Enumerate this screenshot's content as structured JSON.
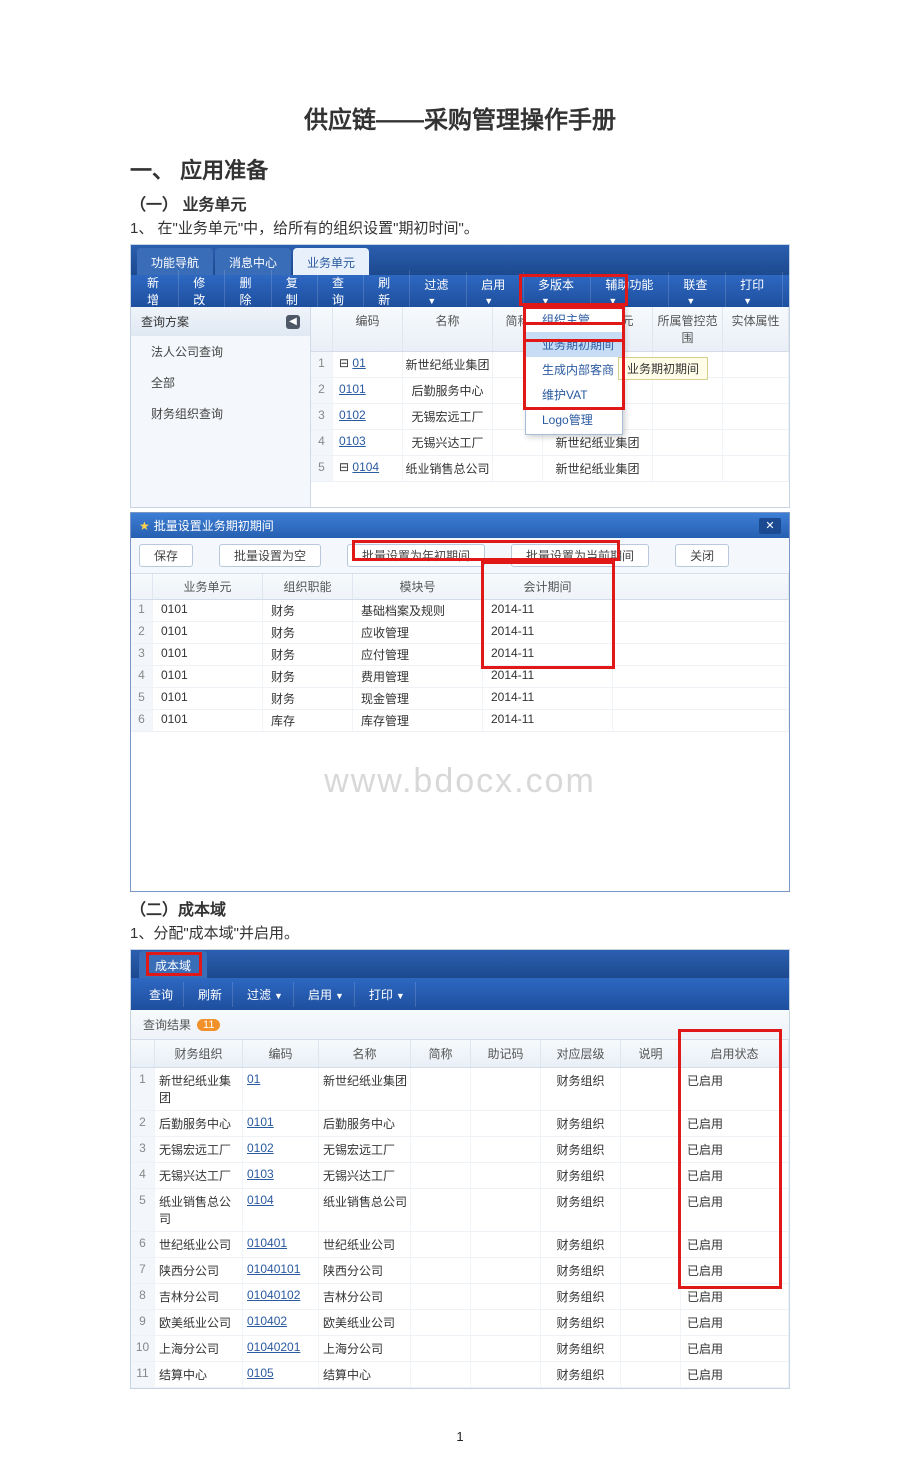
{
  "doc": {
    "title": "供应链——采购管理操作手册",
    "h1": "一、 应用准备",
    "h2a": "（一） 业务单元",
    "p1": "1、 在\"业务单元\"中，给所有的组织设置\"期初时间\"。",
    "h2b": "（二）成本域",
    "p2": "1、分配\"成本域\"并启用。",
    "pagenum": "1"
  },
  "s1": {
    "tabs": [
      "功能导航",
      "消息中心",
      "业务单元"
    ],
    "toolbar": [
      "新增",
      "修改",
      "删除",
      "复制",
      "查询",
      "刷新",
      "过滤",
      "启用",
      "多版本",
      "辅助功能",
      "联查",
      "打印"
    ],
    "left_hdr": "查询方案",
    "left_items": [
      "法人公司查询",
      "全部",
      "财务组织查询"
    ],
    "grid_headers": [
      "编码",
      "名称",
      "简称",
      "上级业务单元",
      "所属管控范围",
      "实体属性"
    ],
    "rows": [
      {
        "n": "1",
        "code": "01",
        "tree": "⊟",
        "name": "新世纪纸业集团",
        "parent": ""
      },
      {
        "n": "2",
        "code": "0101",
        "tree": "",
        "name": "后勤服务中心",
        "parent": "业集团"
      },
      {
        "n": "3",
        "code": "0102",
        "tree": "",
        "name": "无锡宏远工厂",
        "parent": "业集团"
      },
      {
        "n": "4",
        "code": "0103",
        "tree": "",
        "name": "无锡兴达工厂",
        "parent": "新世纪纸业集团"
      },
      {
        "n": "5",
        "code": "0104",
        "tree": "⊟",
        "name": "纸业销售总公司",
        "parent": "新世纪纸业集团"
      }
    ],
    "dd_items": [
      "组织主管",
      "业务期初期间",
      "生成内部客商",
      "维护VAT",
      "Logo管理"
    ],
    "tooltip": "业务期初期间"
  },
  "s2": {
    "title": "批量设置业务期初期间",
    "btns": [
      "保存",
      "批量设置为空",
      "批量设置为年初期间",
      "批量设置为当前期间",
      "关闭"
    ],
    "headers": [
      "业务单元",
      "组织职能",
      "模块号",
      "会计期间"
    ],
    "rows": [
      {
        "n": "1",
        "u": "0101",
        "f": "财务",
        "m": "基础档案及规则",
        "p": "2014-11"
      },
      {
        "n": "2",
        "u": "0101",
        "f": "财务",
        "m": "应收管理",
        "p": "2014-11"
      },
      {
        "n": "3",
        "u": "0101",
        "f": "财务",
        "m": "应付管理",
        "p": "2014-11"
      },
      {
        "n": "4",
        "u": "0101",
        "f": "财务",
        "m": "费用管理",
        "p": "2014-11"
      },
      {
        "n": "5",
        "u": "0101",
        "f": "财务",
        "m": "现金管理",
        "p": "2014-11"
      },
      {
        "n": "6",
        "u": "0101",
        "f": "库存",
        "m": "库存管理",
        "p": "2014-11"
      }
    ],
    "watermark": "www.bdocx.com"
  },
  "s3": {
    "tab": "成本域",
    "toolbar": [
      "查询",
      "刷新",
      "过滤",
      "启用",
      "打印"
    ],
    "sub": "查询结果",
    "count": "11",
    "headers": [
      "财务组织",
      "编码",
      "名称",
      "简称",
      "助记码",
      "对应层级",
      "说明",
      "启用状态"
    ],
    "rows": [
      {
        "n": "1",
        "org": "新世纪纸业集团",
        "code": "01",
        "name": "新世纪纸业集团",
        "lvl": "财务组织",
        "st": "已启用"
      },
      {
        "n": "2",
        "org": "后勤服务中心",
        "code": "0101",
        "name": "后勤服务中心",
        "lvl": "财务组织",
        "st": "已启用"
      },
      {
        "n": "3",
        "org": "无锡宏远工厂",
        "code": "0102",
        "name": "无锡宏远工厂",
        "lvl": "财务组织",
        "st": "已启用"
      },
      {
        "n": "4",
        "org": "无锡兴达工厂",
        "code": "0103",
        "name": "无锡兴达工厂",
        "lvl": "财务组织",
        "st": "已启用"
      },
      {
        "n": "5",
        "org": "纸业销售总公司",
        "code": "0104",
        "name": "纸业销售总公司",
        "lvl": "财务组织",
        "st": "已启用"
      },
      {
        "n": "6",
        "org": "世纪纸业公司",
        "code": "010401",
        "name": "世纪纸业公司",
        "lvl": "财务组织",
        "st": "已启用"
      },
      {
        "n": "7",
        "org": "陕西分公司",
        "code": "01040101",
        "name": "陕西分公司",
        "lvl": "财务组织",
        "st": "已启用"
      },
      {
        "n": "8",
        "org": "吉林分公司",
        "code": "01040102",
        "name": "吉林分公司",
        "lvl": "财务组织",
        "st": "已启用"
      },
      {
        "n": "9",
        "org": "欧美纸业公司",
        "code": "010402",
        "name": "欧美纸业公司",
        "lvl": "财务组织",
        "st": "已启用"
      },
      {
        "n": "10",
        "org": "上海分公司",
        "code": "01040201",
        "name": "上海分公司",
        "lvl": "财务组织",
        "st": "已启用"
      },
      {
        "n": "11",
        "org": "结算中心",
        "code": "0105",
        "name": "结算中心",
        "lvl": "财务组织",
        "st": "已启用"
      }
    ]
  }
}
